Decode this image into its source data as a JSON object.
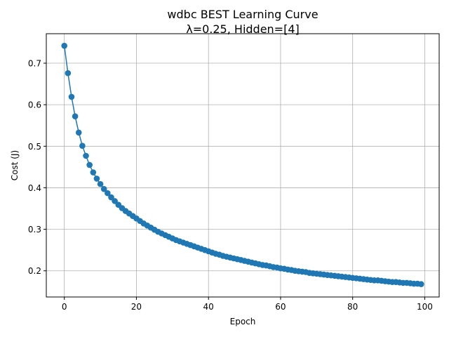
{
  "chart_data": {
    "type": "line",
    "title": "wdbc BEST Learning Curve",
    "subtitle": "λ=0.25, Hidden=[4]",
    "xlabel": "Epoch",
    "ylabel": "Cost (J)",
    "xlim": [
      -5,
      104
    ],
    "ylim": [
      0.137,
      0.771
    ],
    "xticks": [
      0,
      20,
      40,
      60,
      80,
      100
    ],
    "yticks": [
      0.2,
      0.3,
      0.4,
      0.5,
      0.6,
      0.7
    ],
    "grid": true,
    "series_color": "#1f77b4",
    "series": [
      {
        "x": [
          0,
          1,
          2,
          3,
          4,
          5,
          6,
          7,
          8,
          9,
          10,
          11,
          12,
          13,
          14,
          15,
          16,
          17,
          18,
          19,
          20,
          21,
          22,
          23,
          24,
          25,
          26,
          27,
          28,
          29,
          30,
          31,
          32,
          33,
          34,
          35,
          36,
          37,
          38,
          39,
          40,
          41,
          42,
          43,
          44,
          45,
          46,
          47,
          48,
          49,
          50,
          51,
          52,
          53,
          54,
          55,
          56,
          57,
          58,
          59,
          60,
          61,
          62,
          63,
          64,
          65,
          66,
          67,
          68,
          69,
          70,
          71,
          72,
          73,
          74,
          75,
          76,
          77,
          78,
          79,
          80,
          81,
          82,
          83,
          84,
          85,
          86,
          87,
          88,
          89,
          90,
          91,
          92,
          93,
          94,
          95,
          96,
          97,
          98,
          99
        ],
        "values": [
          0.742,
          0.676,
          0.619,
          0.572,
          0.533,
          0.501,
          0.477,
          0.455,
          0.437,
          0.422,
          0.409,
          0.397,
          0.387,
          0.377,
          0.368,
          0.359,
          0.351,
          0.344,
          0.338,
          0.332,
          0.326,
          0.32,
          0.314,
          0.309,
          0.304,
          0.299,
          0.294,
          0.29,
          0.286,
          0.282,
          0.278,
          0.274,
          0.271,
          0.268,
          0.265,
          0.262,
          0.259,
          0.256,
          0.253,
          0.25,
          0.247,
          0.244,
          0.241,
          0.239,
          0.236,
          0.234,
          0.232,
          0.23,
          0.228,
          0.226,
          0.224,
          0.222,
          0.22,
          0.218,
          0.216,
          0.214,
          0.213,
          0.211,
          0.209,
          0.208,
          0.206,
          0.205,
          0.203,
          0.202,
          0.2,
          0.199,
          0.198,
          0.197,
          0.195,
          0.194,
          0.193,
          0.192,
          0.191,
          0.19,
          0.189,
          0.188,
          0.187,
          0.186,
          0.185,
          0.184,
          0.183,
          0.182,
          0.181,
          0.18,
          0.179,
          0.178,
          0.177,
          0.177,
          0.176,
          0.175,
          0.174,
          0.173,
          0.173,
          0.172,
          0.171,
          0.171,
          0.17,
          0.169,
          0.169,
          0.168
        ]
      }
    ]
  }
}
